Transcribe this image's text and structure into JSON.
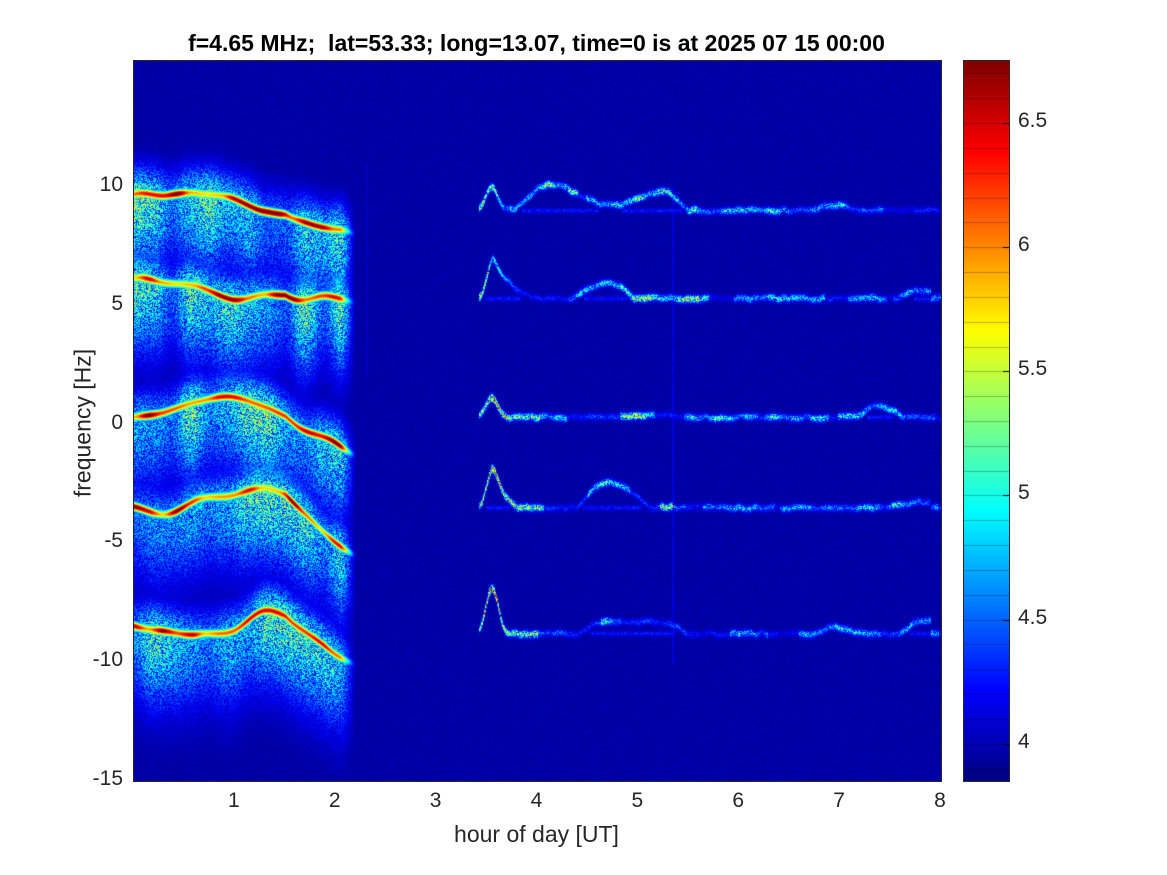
{
  "chart_data": {
    "type": "heatmap",
    "subtype": "doppler-spectrogram",
    "title": "f=4.65 MHz;  lat=53.33; long=13.07, time=0 is at 2025 07 15 00:00",
    "xlabel": "hour of day [UT]",
    "ylabel": "frequency [Hz]",
    "xlim": [
      0,
      8
    ],
    "ylim": [
      -15,
      15.3
    ],
    "grid": false,
    "x_ticks": [
      {
        "value": 1,
        "label": "1"
      },
      {
        "value": 2,
        "label": "2"
      },
      {
        "value": 3,
        "label": "3"
      },
      {
        "value": 4,
        "label": "4"
      },
      {
        "value": 5,
        "label": "5"
      },
      {
        "value": 6,
        "label": "6"
      },
      {
        "value": 7,
        "label": "7"
      },
      {
        "value": 8,
        "label": "8"
      }
    ],
    "y_ticks": [
      {
        "value": 10,
        "label": "10"
      },
      {
        "value": 5,
        "label": "5"
      },
      {
        "value": 0,
        "label": "0"
      },
      {
        "value": -5,
        "label": "-5"
      },
      {
        "value": -10,
        "label": "-10"
      },
      {
        "value": -15,
        "label": "-15"
      }
    ],
    "colorbar": {
      "colormap": "jet",
      "min": 3.85,
      "max": 6.75,
      "position": "right",
      "ticks": [
        {
          "value": 4,
          "label": "4"
        },
        {
          "value": 4.5,
          "label": "4.5"
        },
        {
          "value": 5,
          "label": "5"
        },
        {
          "value": 5.5,
          "label": "5.5"
        },
        {
          "value": 6,
          "label": "6"
        },
        {
          "value": 6.5,
          "label": "6.5"
        }
      ]
    },
    "background_value": 3.95,
    "intervals": {
      "strong_activity_hours": [
        0,
        2.17
      ],
      "quiet_gap_hours": [
        2.17,
        3.42
      ],
      "weak_activity_hours": [
        3.42,
        8
      ]
    },
    "traces": [
      {
        "center_hz": 9.0,
        "burst_lift_hz": 1.0,
        "burst_amp": 0.9
      },
      {
        "center_hz": 5.3,
        "burst_lift_hz": 0.7,
        "burst_amp": 0.6
      },
      {
        "center_hz": 0.3,
        "burst_lift_hz": 0.8,
        "burst_amp": 0.6
      },
      {
        "center_hz": -3.5,
        "burst_lift_hz": 0.9,
        "burst_amp": 0.7
      },
      {
        "center_hz": -8.8,
        "burst_lift_hz": 1.9,
        "burst_amp": 1.2
      }
    ],
    "vertical_artifacts": [
      {
        "t_hours": 5.33,
        "f_range_hz": [
          -10,
          10
        ],
        "amp": 0.22
      },
      {
        "t_hours": 2.3,
        "f_range_hz": [
          2,
          11
        ],
        "amp": 0.1
      }
    ],
    "colors": {
      "figure_background": "#ffffff",
      "axis_line": "#262626",
      "tick_label": "#262626",
      "title": "#000000",
      "plot_background_deep_blue": "#0000a0"
    }
  }
}
